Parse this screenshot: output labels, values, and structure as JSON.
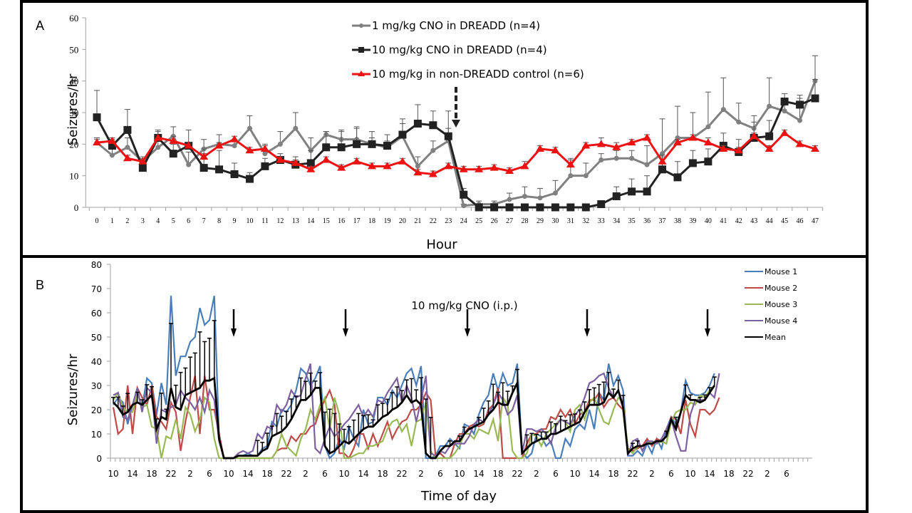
{
  "chart_data": [
    {
      "type": "line",
      "panel_label": "A",
      "title": "",
      "xlabel": "Hour",
      "ylabel": "Seizures/hr",
      "ylim": [
        0,
        60
      ],
      "yticks": [
        0,
        10,
        20,
        30,
        40,
        50,
        60
      ],
      "x": [
        0,
        1,
        2,
        3,
        4,
        5,
        6,
        7,
        8,
        9,
        10,
        11,
        12,
        13,
        14,
        15,
        16,
        17,
        18,
        19,
        20,
        21,
        22,
        23,
        24,
        25,
        26,
        27,
        28,
        29,
        30,
        31,
        32,
        33,
        34,
        35,
        36,
        37,
        38,
        39,
        40,
        41,
        42,
        43,
        44,
        45,
        46,
        47
      ],
      "grid": false,
      "legend_position": "top-center",
      "annotation": {
        "type": "dashed-arrow",
        "at_hour": 23.5
      },
      "series": [
        {
          "name": "1 mg/kg CNO in DREADD (n=4)",
          "color": "#808080",
          "marker": "circle",
          "values": [
            20.5,
            16.5,
            19,
            14.5,
            19,
            22.5,
            13.5,
            18.5,
            20,
            19.5,
            25,
            17,
            20,
            25,
            18,
            23,
            21.5,
            21.5,
            20,
            19,
            22.5,
            13,
            18,
            21,
            0.5,
            1,
            1,
            2.5,
            3.5,
            3,
            4.5,
            10,
            10,
            15,
            15.5,
            15.5,
            13.5,
            17,
            22,
            22,
            25.5,
            31,
            27,
            25,
            32,
            30.5,
            27.5,
            40
          ],
          "errors": [
            1.5,
            2,
            3,
            1,
            4,
            3,
            4,
            3,
            3,
            2,
            4,
            3,
            4,
            5,
            4,
            1,
            3,
            4,
            2,
            2,
            4,
            3,
            3,
            4,
            0.5,
            1,
            1,
            2,
            3,
            3,
            4,
            5,
            4,
            2,
            2.5,
            2.5,
            6,
            11,
            10,
            8,
            11,
            10,
            6,
            4,
            9,
            4,
            7,
            8
          ]
        },
        {
          "name": "10 mg/kg CNO in DREADD (n=4)",
          "color": "#222222",
          "marker": "square",
          "values": [
            28.5,
            19.5,
            24.5,
            12.5,
            22,
            17,
            19.5,
            12.5,
            12,
            10.5,
            9,
            13,
            15,
            13.5,
            14,
            19,
            19,
            20,
            20,
            19.5,
            23,
            26.5,
            26,
            22.5,
            4,
            0,
            0,
            0,
            0,
            0,
            0,
            0,
            0,
            1,
            3.5,
            5,
            5,
            12,
            9.5,
            14,
            14.5,
            19.5,
            17.5,
            22,
            22.5,
            33.5,
            32.5,
            34.5
          ],
          "errors": [
            8.5,
            2,
            6.5,
            2,
            2.5,
            3,
            5,
            6,
            6,
            3.5,
            2,
            2.5,
            2,
            2.5,
            4,
            5,
            5,
            5,
            4,
            3.5,
            5,
            6,
            4.5,
            8,
            2,
            0,
            0,
            0,
            0,
            0,
            0,
            0,
            0,
            0.5,
            3,
            4,
            5,
            4,
            5,
            4,
            4,
            4,
            4,
            5,
            5,
            2.5,
            3,
            6
          ]
        },
        {
          "name": "10 mg/kg in non-DREADD control (n=6)",
          "color": "#EE1111",
          "marker": "triangle",
          "values": [
            20.5,
            21,
            15.5,
            14.5,
            22,
            21,
            19.5,
            16,
            19.5,
            21.5,
            18,
            18.5,
            15,
            14,
            12,
            15,
            12.5,
            14.5,
            13,
            13,
            14.5,
            11,
            10.5,
            13,
            12,
            12,
            12.5,
            11.5,
            13,
            18.5,
            18,
            13.5,
            19.5,
            20,
            19,
            20.5,
            22,
            14.5,
            20.5,
            22,
            20.5,
            18.5,
            18,
            22.5,
            18.5,
            23.5,
            20,
            18.5
          ],
          "errors": [
            1,
            1,
            1,
            1.5,
            2,
            1.5,
            1,
            1,
            1,
            1,
            1,
            1,
            1,
            1,
            1,
            1,
            1,
            1,
            1,
            1,
            1,
            1,
            1,
            1,
            1,
            1,
            1,
            1,
            1.5,
            1,
            1,
            2,
            1,
            2,
            1.5,
            1,
            1,
            2,
            1,
            1,
            1.5,
            1,
            1,
            1,
            1,
            1,
            1,
            1
          ]
        }
      ]
    },
    {
      "type": "line",
      "panel_label": "B",
      "title": "",
      "annotation_text": "10 mg/kg CNO (i.p.)",
      "xlabel": "Time of day",
      "ylabel": "Seizures/hr",
      "ylim": [
        0,
        80
      ],
      "yticks": [
        0,
        10,
        20,
        30,
        40,
        50,
        60,
        70,
        80
      ],
      "xtick_labels": [
        "10",
        "14",
        "18",
        "22",
        "2",
        "6",
        "10",
        "14",
        "18",
        "22",
        "2",
        "6",
        "10",
        "14",
        "18",
        "22",
        "2",
        "6",
        "10",
        "14",
        "18",
        "22",
        "2",
        "6",
        "10",
        "14",
        "18",
        "22",
        "2",
        "6",
        "10",
        "14",
        "18",
        "22",
        "2",
        "6"
      ],
      "xtick_step_hours": 4,
      "injection_hours": [
        24,
        48,
        72,
        96,
        120
      ],
      "grid": false,
      "legend_position": "top-right",
      "hours_per_point": 2,
      "series": [
        {
          "name": "Mouse 1",
          "color": "#4A7EBB",
          "values": [
            22,
            25,
            23,
            14,
            22,
            27,
            21,
            33,
            31,
            18,
            31,
            22,
            67,
            34,
            42,
            42,
            48,
            50,
            62,
            55,
            57,
            67,
            8,
            0,
            0,
            0,
            1,
            1,
            2,
            1,
            1,
            4,
            5,
            15,
            13,
            20,
            19,
            22,
            28,
            37,
            35,
            30,
            33,
            38,
            5,
            0,
            2,
            8,
            4,
            13,
            8,
            5,
            20,
            14,
            15,
            25,
            25,
            22,
            28,
            25,
            30,
            35,
            37,
            30,
            38,
            0,
            0,
            1,
            5,
            5,
            8,
            6,
            4,
            14,
            13,
            10,
            18,
            23,
            26,
            35,
            28,
            35,
            30,
            31,
            39,
            3,
            0,
            2,
            10,
            9,
            5,
            7,
            0,
            0,
            8,
            5,
            12,
            14,
            12,
            20,
            12,
            27,
            24,
            39,
            30,
            34,
            28,
            1,
            1,
            3,
            1,
            6,
            2,
            8,
            4,
            12,
            17,
            14,
            19,
            32,
            27,
            26,
            26,
            27,
            30,
            35
          ]
        },
        {
          "name": "Mouse 2",
          "color": "#BE4B48",
          "values": [
            21,
            10,
            12,
            30,
            10,
            29,
            25,
            22,
            30,
            17,
            15,
            12,
            23,
            19,
            3,
            15,
            25,
            34,
            10,
            34,
            20,
            20,
            10,
            0,
            0,
            0,
            0,
            0,
            0,
            0,
            0,
            0,
            0,
            0,
            3,
            4,
            4,
            9,
            7,
            10,
            10,
            13,
            14,
            20,
            24,
            28,
            22,
            2,
            2,
            0,
            4,
            10,
            10,
            4,
            10,
            5,
            10,
            15,
            8,
            12,
            15,
            16,
            20,
            20,
            22,
            27,
            24,
            1,
            2,
            0,
            0,
            6,
            10,
            10,
            13,
            14,
            13,
            14,
            20,
            22,
            29,
            0,
            0,
            0,
            0,
            0,
            6,
            10,
            10,
            12,
            12,
            17,
            16,
            20,
            17,
            20,
            14,
            18,
            19,
            24,
            24,
            27,
            21,
            24,
            25,
            22,
            20,
            4,
            3,
            4,
            5,
            8,
            5,
            8,
            7,
            6,
            17,
            16,
            10,
            24,
            14,
            9,
            20,
            20,
            18,
            20,
            25
          ]
        },
        {
          "name": "Mouse 3",
          "color": "#98B954",
          "values": [
            24,
            27,
            21,
            19,
            19,
            27,
            21,
            22,
            13,
            12,
            0,
            9,
            8,
            16,
            8,
            21,
            18,
            11,
            16,
            25,
            23,
            8,
            0,
            0,
            0,
            0,
            0,
            0,
            0,
            0,
            0,
            0,
            0,
            0,
            3,
            10,
            5,
            3,
            1,
            8,
            12,
            20,
            16,
            22,
            25,
            12,
            25,
            18,
            0,
            0,
            1,
            2,
            2,
            5,
            5,
            6,
            7,
            12,
            15,
            16,
            11,
            14,
            5,
            15,
            16,
            23,
            3,
            0,
            0,
            0,
            0,
            2,
            5,
            10,
            10,
            8,
            12,
            11,
            10,
            16,
            7,
            25,
            22,
            3,
            0,
            0,
            2,
            10,
            9,
            5,
            10,
            12,
            14,
            16,
            15,
            11,
            20,
            22,
            16,
            23,
            25,
            20,
            15,
            14,
            20,
            25,
            23,
            4,
            2,
            5,
            5,
            6,
            7,
            6,
            7,
            6,
            15,
            19,
            20,
            20,
            23,
            22,
            26,
            25,
            28,
            30
          ]
        },
        {
          "name": "Mouse 4",
          "color": "#7D60A0",
          "values": [
            26,
            27,
            17,
            16,
            22,
            29,
            19,
            29,
            27,
            6,
            20,
            19,
            21,
            22,
            28,
            25,
            23,
            20,
            25,
            19,
            28,
            24,
            7,
            0,
            0,
            0,
            2,
            3,
            2,
            3,
            10,
            8,
            13,
            12,
            22,
            19,
            22,
            28,
            25,
            26,
            33,
            39,
            4,
            2,
            8,
            13,
            9,
            11,
            14,
            16,
            19,
            22,
            17,
            20,
            17,
            24,
            23,
            27,
            30,
            33,
            23,
            30,
            25,
            15,
            24,
            34,
            2,
            1,
            3,
            2,
            5,
            6,
            6,
            6,
            9,
            14,
            16,
            15,
            18,
            22,
            27,
            24,
            18,
            20,
            26,
            2,
            12,
            12,
            11,
            12,
            10,
            6,
            13,
            16,
            15,
            14,
            18,
            20,
            25,
            31,
            32,
            34,
            35,
            29,
            25,
            28,
            22,
            1,
            7,
            8,
            3,
            7,
            7,
            6,
            8,
            12,
            16,
            9,
            3,
            3,
            18,
            24,
            24,
            24,
            27,
            25,
            35
          ]
        },
        {
          "name": "Mean",
          "color": "#000000",
          "values": [
            23,
            21,
            18,
            19,
            22,
            23,
            22,
            24,
            26,
            12,
            17,
            16,
            29,
            21,
            20,
            26,
            27,
            28,
            29,
            32,
            32,
            33,
            8,
            0,
            0,
            0,
            1,
            1,
            1,
            1,
            1,
            3,
            4,
            9,
            10,
            11,
            13,
            16,
            20,
            24,
            24,
            26,
            29,
            29,
            5,
            2,
            3,
            5,
            7,
            6,
            8,
            10,
            12,
            13,
            13,
            15,
            17,
            18,
            20,
            21,
            23,
            26,
            23,
            24,
            22,
            2,
            0,
            0,
            3,
            5,
            5,
            7,
            7,
            10,
            12,
            13,
            14,
            15,
            18,
            20,
            23,
            22,
            22,
            27,
            31,
            2,
            4,
            6,
            7,
            8,
            8,
            10,
            10,
            11,
            12,
            13,
            14,
            15,
            19,
            22,
            22,
            22,
            23,
            27,
            25,
            28,
            21,
            2,
            4,
            5,
            5,
            6,
            6,
            7,
            7,
            9,
            16,
            12,
            19,
            26,
            24,
            24,
            23,
            24,
            27,
            30
          ]
        }
      ]
    }
  ]
}
